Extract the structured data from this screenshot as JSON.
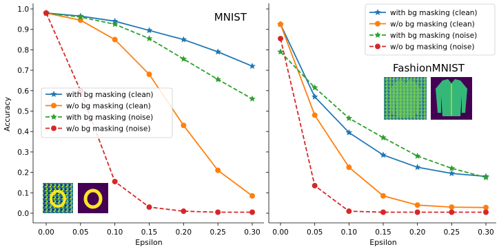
{
  "colors": {
    "with_bg_clean": "#1f77b4",
    "wo_bg_clean": "#ff7f0e",
    "with_bg_noise": "#2ca02c",
    "wo_bg_noise": "#d62728"
  },
  "chart_data": [
    {
      "type": "line",
      "title": "MNIST",
      "xlabel": "Epsilon",
      "ylabel": "Accuracy",
      "x": [
        0.0,
        0.05,
        0.1,
        0.15,
        0.2,
        0.25,
        0.3
      ],
      "xticks": [
        "0.00",
        "0.05",
        "0.10",
        "0.15",
        "0.20",
        "0.25",
        "0.30"
      ],
      "yticks": [
        "0.0",
        "0.1",
        "0.2",
        "0.3",
        "0.4",
        "0.5",
        "0.6",
        "0.7",
        "0.8",
        "0.9",
        "1.0"
      ],
      "ylim": [
        0.0,
        1.0
      ],
      "legend_placement": "center-left",
      "grid": false,
      "series": [
        {
          "name": "with bg masking (clean)",
          "values": [
            0.98,
            0.965,
            0.94,
            0.895,
            0.85,
            0.79,
            0.72
          ],
          "style": "solid",
          "marker": "star",
          "color_key": "with_bg_clean"
        },
        {
          "name": "w/o bg masking (clean)",
          "values": [
            0.98,
            0.945,
            0.85,
            0.68,
            0.43,
            0.21,
            0.085
          ],
          "style": "solid",
          "marker": "circle",
          "color_key": "wo_bg_clean"
        },
        {
          "name": "with bg masking (noise)",
          "values": [
            0.98,
            0.96,
            0.925,
            0.855,
            0.755,
            0.655,
            0.56
          ],
          "style": "dashed",
          "marker": "star",
          "color_key": "with_bg_noise"
        },
        {
          "name": "w/o bg masking (noise)",
          "values": [
            0.98,
            0.6,
            0.155,
            0.03,
            0.01,
            0.005,
            0.005
          ],
          "style": "dashed",
          "marker": "circle",
          "color_key": "wo_bg_noise"
        }
      ],
      "thumbnails": [
        "noisy-digit-zero",
        "masked-digit-zero"
      ]
    },
    {
      "type": "line",
      "title": "FashionMNIST",
      "xlabel": "Epsilon",
      "ylabel": "",
      "x": [
        0.0,
        0.05,
        0.1,
        0.15,
        0.2,
        0.25,
        0.3
      ],
      "xticks": [
        "0.00",
        "0.05",
        "0.10",
        "0.15",
        "0.20",
        "0.25",
        "0.30"
      ],
      "yticks": [],
      "ylim": [
        0.0,
        1.0
      ],
      "legend_placement": "top-right",
      "grid": false,
      "series": [
        {
          "name": "with bg masking (clean)",
          "values": [
            0.925,
            0.57,
            0.395,
            0.285,
            0.225,
            0.195,
            0.18
          ],
          "style": "solid",
          "marker": "star",
          "color_key": "with_bg_clean"
        },
        {
          "name": "w/o bg masking (clean)",
          "values": [
            0.925,
            0.48,
            0.225,
            0.085,
            0.04,
            0.03,
            0.028
          ],
          "style": "solid",
          "marker": "circle",
          "color_key": "wo_bg_clean"
        },
        {
          "name": "with bg masking (noise)",
          "values": [
            0.79,
            0.615,
            0.465,
            0.37,
            0.28,
            0.22,
            0.175
          ],
          "style": "dashed",
          "marker": "star",
          "color_key": "with_bg_noise"
        },
        {
          "name": "w/o bg masking (noise)",
          "values": [
            0.855,
            0.135,
            0.01,
            0.005,
            0.005,
            0.005,
            0.005
          ],
          "style": "dashed",
          "marker": "circle",
          "color_key": "wo_bg_noise"
        }
      ],
      "thumbnails": [
        "noisy-jacket",
        "masked-jacket"
      ]
    }
  ]
}
